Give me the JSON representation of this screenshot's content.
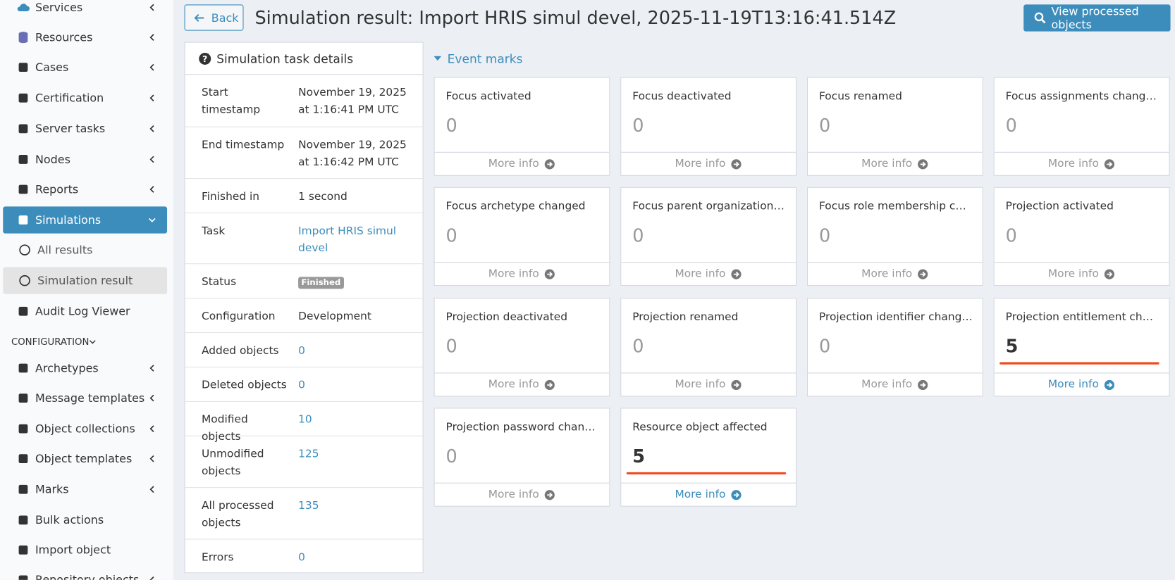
{
  "sidebar": {
    "items": [
      {
        "label": "Services",
        "chevron": "left"
      },
      {
        "label": "Resources",
        "chevron": "left"
      },
      {
        "label": "Cases",
        "chevron": "left"
      },
      {
        "label": "Certification",
        "chevron": "left"
      },
      {
        "label": "Server tasks",
        "chevron": "left"
      },
      {
        "label": "Nodes",
        "chevron": "left"
      },
      {
        "label": "Reports",
        "chevron": "left"
      },
      {
        "label": "Simulations",
        "chevron": "down",
        "active": true
      },
      {
        "label": "All results",
        "sub": true
      },
      {
        "label": "Simulation result",
        "sub": true,
        "selected": true
      },
      {
        "label": "Audit Log Viewer"
      },
      {
        "label": "CONFIGURATION",
        "section": true
      },
      {
        "label": "Archetypes",
        "chevron": "left"
      },
      {
        "label": "Message templates",
        "chevron": "left"
      },
      {
        "label": "Object collections",
        "chevron": "left"
      },
      {
        "label": "Object templates",
        "chevron": "left"
      },
      {
        "label": "Marks",
        "chevron": "left"
      },
      {
        "label": "Bulk actions"
      },
      {
        "label": "Import object"
      },
      {
        "label": "Repository objects",
        "chevron": "left"
      }
    ]
  },
  "header": {
    "back": "Back",
    "title": "Simulation result: Import HRIS simul devel, 2025-11-19T13:16:41.514Z",
    "action": "View processed objects"
  },
  "details": {
    "title": "Simulation task details",
    "rows": [
      {
        "label": "Start timestamp",
        "value": "November 19, 2025 at 1:16:41 PM UTC"
      },
      {
        "label": "End timestamp",
        "value": "November 19, 2025 at 1:16:42 PM UTC"
      },
      {
        "label": "Finished in",
        "value": "1 second"
      },
      {
        "label": "Task",
        "value": "Import HRIS simul devel",
        "link": true
      },
      {
        "label": "Status",
        "value": "Finished",
        "badge": true
      },
      {
        "label": "Configuration",
        "value": "Development"
      },
      {
        "label": "Added objects",
        "value": 0,
        "link": true
      },
      {
        "label": "Deleted objects",
        "value": 0,
        "link": true
      },
      {
        "label": "Modified objects",
        "value": 10,
        "link": true
      },
      {
        "label": "Unmodified objects",
        "value": 125,
        "link": true
      },
      {
        "label": "All processed objects",
        "value": 135,
        "link": true
      },
      {
        "label": "Errors",
        "value": 0,
        "link": true
      }
    ]
  },
  "event_marks": {
    "title": "Event marks",
    "more_info": "More info",
    "cards": [
      {
        "label": "Focus activated",
        "value": 0
      },
      {
        "label": "Focus deactivated",
        "value": 0
      },
      {
        "label": "Focus renamed",
        "value": 0
      },
      {
        "label": "Focus assignments changed",
        "value": 0
      },
      {
        "label": "Focus archetype changed",
        "value": 0
      },
      {
        "label": "Focus parent organization ref…",
        "value": 0
      },
      {
        "label": "Focus role membership chan…",
        "value": 0
      },
      {
        "label": "Projection activated",
        "value": 0
      },
      {
        "label": "Projection deactivated",
        "value": 0
      },
      {
        "label": "Projection renamed",
        "value": 0
      },
      {
        "label": "Projection identifier changed",
        "value": 0
      },
      {
        "label": "Projection entitlement changed",
        "value": 5
      },
      {
        "label": "Projection password changed",
        "value": 0
      },
      {
        "label": "Resource object affected",
        "value": 5
      }
    ]
  }
}
